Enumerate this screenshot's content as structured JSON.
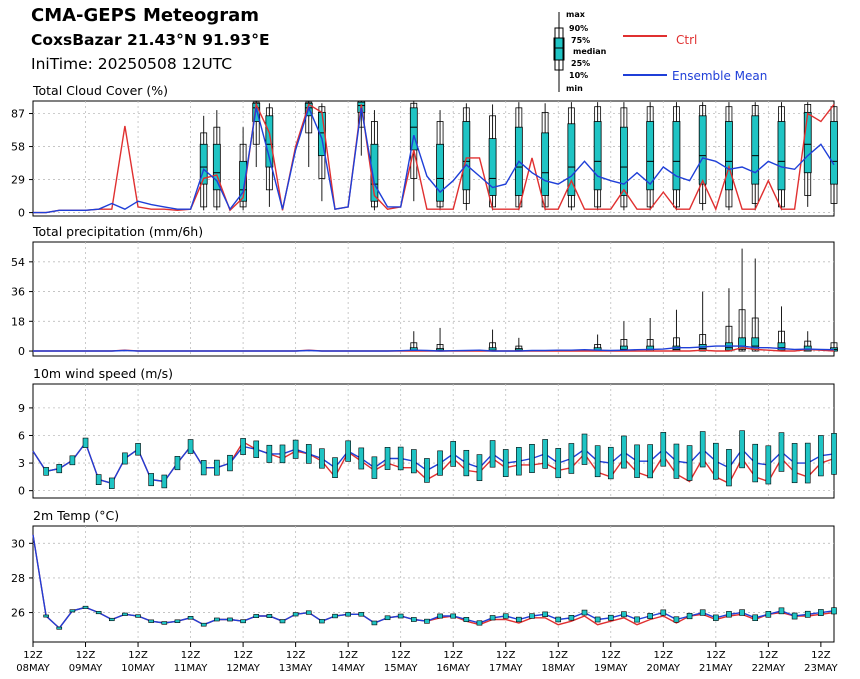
{
  "header": {
    "title": "CMA-GEPS Meteogram",
    "location": "CoxsBazar 21.43°N 91.93°E",
    "init_time": "IniTime: 20250508 12UTC"
  },
  "legend": {
    "box_labels": [
      "max",
      "90%",
      "75%",
      "median",
      "25%",
      "10%",
      "min"
    ],
    "ctrl_label": "Ctrl",
    "mean_label": "Ensemble Mean",
    "colors": {
      "ctrl": "#e03030",
      "mean": "#1f3fd8",
      "box": "#1fc4c4"
    }
  },
  "chart_data": [
    {
      "type": "line",
      "title": "Total Cloud Cover (%)",
      "ylim": [
        -3,
        98
      ],
      "yticks": [
        0,
        29,
        58,
        87
      ],
      "x_step_hours": 6,
      "grid": true,
      "ctrl": [
        0,
        0,
        2,
        2,
        2,
        3,
        3,
        76,
        5,
        3,
        3,
        2,
        3,
        30,
        33,
        2,
        13,
        95,
        70,
        2,
        58,
        95,
        88,
        3,
        5,
        95,
        15,
        3,
        5,
        55,
        3,
        3,
        3,
        48,
        48,
        3,
        3,
        3,
        48,
        3,
        3,
        28,
        3,
        3,
        3,
        20,
        3,
        3,
        18,
        3,
        3,
        28,
        3,
        40,
        3,
        3,
        28,
        3,
        3,
        87,
        80,
        95
      ],
      "mean": [
        0,
        0,
        2,
        2,
        2,
        3,
        8,
        3,
        10,
        7,
        5,
        3,
        3,
        38,
        28,
        3,
        18,
        92,
        48,
        3,
        55,
        92,
        65,
        3,
        5,
        92,
        25,
        5,
        5,
        68,
        32,
        18,
        28,
        42,
        32,
        22,
        25,
        45,
        35,
        28,
        25,
        32,
        45,
        32,
        28,
        25,
        35,
        25,
        40,
        32,
        28,
        48,
        45,
        38,
        40,
        35,
        45,
        40,
        38,
        50,
        60,
        42
      ],
      "boxes": [
        {
          "i": 13,
          "min": 2,
          "p10": 5,
          "p25": 25,
          "med": 40,
          "p75": 60,
          "p90": 70,
          "max": 85
        },
        {
          "i": 14,
          "min": 2,
          "p10": 5,
          "p25": 20,
          "med": 35,
          "p75": 60,
          "p90": 75,
          "max": 90
        },
        {
          "i": 16,
          "min": 2,
          "p10": 5,
          "p25": 10,
          "med": 20,
          "p75": 45,
          "p90": 60,
          "max": 75
        },
        {
          "i": 17,
          "min": 40,
          "p10": 60,
          "p25": 80,
          "med": 92,
          "p75": 96,
          "p90": 97,
          "max": 98
        },
        {
          "i": 18,
          "min": 5,
          "p10": 20,
          "p25": 40,
          "med": 60,
          "p75": 85,
          "p90": 92,
          "max": 96
        },
        {
          "i": 21,
          "min": 40,
          "p10": 70,
          "p25": 85,
          "med": 92,
          "p75": 96,
          "p90": 97,
          "max": 98
        },
        {
          "i": 22,
          "min": 10,
          "p10": 30,
          "p25": 50,
          "med": 70,
          "p75": 88,
          "p90": 93,
          "max": 96
        },
        {
          "i": 25,
          "min": 50,
          "p10": 75,
          "p25": 88,
          "med": 94,
          "p75": 97,
          "p90": 98,
          "max": 98
        },
        {
          "i": 26,
          "min": 2,
          "p10": 5,
          "p25": 10,
          "med": 25,
          "p75": 60,
          "p90": 80,
          "max": 90
        },
        {
          "i": 29,
          "min": 10,
          "p10": 30,
          "p25": 55,
          "med": 75,
          "p75": 92,
          "p90": 96,
          "max": 98
        },
        {
          "i": 31,
          "min": 2,
          "p10": 5,
          "p25": 10,
          "med": 30,
          "p75": 60,
          "p90": 80,
          "max": 90
        },
        {
          "i": 33,
          "min": 2,
          "p10": 8,
          "p25": 20,
          "med": 45,
          "p75": 80,
          "p90": 92,
          "max": 96
        },
        {
          "i": 35,
          "min": 2,
          "p10": 5,
          "p25": 15,
          "med": 30,
          "p75": 65,
          "p90": 85,
          "max": 95
        },
        {
          "i": 37,
          "min": 2,
          "p10": 5,
          "p25": 15,
          "med": 40,
          "p75": 75,
          "p90": 92,
          "max": 97
        },
        {
          "i": 39,
          "min": 2,
          "p10": 5,
          "p25": 15,
          "med": 35,
          "p75": 70,
          "p90": 88,
          "max": 96
        },
        {
          "i": 41,
          "min": 2,
          "p10": 5,
          "p25": 15,
          "med": 40,
          "p75": 78,
          "p90": 92,
          "max": 97
        },
        {
          "i": 43,
          "min": 2,
          "p10": 5,
          "p25": 20,
          "med": 45,
          "p75": 80,
          "p90": 93,
          "max": 97
        },
        {
          "i": 45,
          "min": 2,
          "p10": 5,
          "p25": 15,
          "med": 40,
          "p75": 75,
          "p90": 92,
          "max": 97
        },
        {
          "i": 47,
          "min": 2,
          "p10": 5,
          "p25": 20,
          "med": 45,
          "p75": 80,
          "p90": 93,
          "max": 97
        },
        {
          "i": 49,
          "min": 2,
          "p10": 5,
          "p25": 20,
          "med": 45,
          "p75": 80,
          "p90": 93,
          "max": 97
        },
        {
          "i": 51,
          "min": 2,
          "p10": 8,
          "p25": 25,
          "med": 50,
          "p75": 85,
          "p90": 94,
          "max": 97
        },
        {
          "i": 53,
          "min": 2,
          "p10": 5,
          "p25": 20,
          "med": 45,
          "p75": 80,
          "p90": 93,
          "max": 97
        },
        {
          "i": 55,
          "min": 2,
          "p10": 8,
          "p25": 25,
          "med": 50,
          "p75": 85,
          "p90": 94,
          "max": 97
        },
        {
          "i": 57,
          "min": 2,
          "p10": 5,
          "p25": 20,
          "med": 45,
          "p75": 80,
          "p90": 93,
          "max": 97
        },
        {
          "i": 59,
          "min": 5,
          "p10": 15,
          "p25": 35,
          "med": 60,
          "p75": 88,
          "p90": 95,
          "max": 97
        },
        {
          "i": 61,
          "min": 2,
          "p10": 8,
          "p25": 25,
          "med": 45,
          "p75": 80,
          "p90": 93,
          "max": 97
        }
      ]
    },
    {
      "type": "line",
      "title": "Total precipitation (mm/6h)",
      "ylim": [
        -3,
        66
      ],
      "yticks": [
        0,
        18,
        36,
        54
      ],
      "x_step_hours": 6,
      "grid": true,
      "ctrl": [
        0,
        0,
        0,
        0,
        0,
        0,
        0,
        0.5,
        0,
        0,
        0,
        0,
        0,
        0,
        0,
        0,
        0,
        0,
        0,
        0,
        0,
        0.5,
        0,
        0,
        0,
        0,
        0,
        0,
        0,
        0,
        0,
        0,
        0,
        0,
        0,
        0,
        0,
        0,
        0,
        0,
        0,
        0,
        0,
        0,
        0,
        0,
        0,
        0,
        0,
        0,
        0,
        0.5,
        0,
        0,
        2,
        1,
        0.5,
        0,
        0,
        1,
        0.5,
        0
      ],
      "mean": [
        0,
        0,
        0,
        0,
        0,
        0,
        0,
        0.3,
        0,
        0,
        0,
        0,
        0,
        0,
        0,
        0,
        0,
        0,
        0,
        0,
        0,
        0.3,
        0,
        0,
        0,
        0,
        0,
        0,
        0.2,
        0.5,
        0.3,
        0,
        0.2,
        0.3,
        0.5,
        0,
        0,
        0,
        0.3,
        0.3,
        0.5,
        0.5,
        0.8,
        0.5,
        0.3,
        0.5,
        0.8,
        1,
        1.2,
        2,
        2,
        2.5,
        3,
        3,
        3,
        2,
        2,
        1.5,
        1,
        1.2,
        1,
        0.8
      ],
      "boxes": [
        {
          "i": 29,
          "min": 0,
          "p10": 0,
          "p25": 0,
          "med": 0.5,
          "p75": 2,
          "p90": 5,
          "max": 12
        },
        {
          "i": 31,
          "min": 0,
          "p10": 0,
          "p25": 0,
          "med": 0.5,
          "p75": 1.5,
          "p90": 4,
          "max": 14
        },
        {
          "i": 35,
          "min": 0,
          "p10": 0,
          "p25": 0,
          "med": 0.5,
          "p75": 2,
          "p90": 5,
          "max": 13
        },
        {
          "i": 37,
          "min": 0,
          "p10": 0,
          "p25": 0,
          "med": 0.5,
          "p75": 1.5,
          "p90": 3,
          "max": 8
        },
        {
          "i": 43,
          "min": 0,
          "p10": 0,
          "p25": 0,
          "med": 0.5,
          "p75": 2,
          "p90": 4,
          "max": 10
        },
        {
          "i": 45,
          "min": 0,
          "p10": 0,
          "p25": 0,
          "med": 1,
          "p75": 3,
          "p90": 7,
          "max": 18
        },
        {
          "i": 47,
          "min": 0,
          "p10": 0,
          "p25": 0,
          "med": 1,
          "p75": 3,
          "p90": 7,
          "max": 20
        },
        {
          "i": 49,
          "min": 0,
          "p10": 0,
          "p25": 0,
          "med": 1,
          "p75": 3,
          "p90": 8,
          "max": 25
        },
        {
          "i": 51,
          "min": 0,
          "p10": 0,
          "p25": 0.5,
          "med": 1.5,
          "p75": 4,
          "p90": 10,
          "max": 36
        },
        {
          "i": 53,
          "min": 0,
          "p10": 0,
          "p25": 0.5,
          "med": 2,
          "p75": 5,
          "p90": 15,
          "max": 38
        },
        {
          "i": 54,
          "min": 0,
          "p10": 0,
          "p25": 1,
          "med": 3,
          "p75": 8,
          "p90": 25,
          "max": 62
        },
        {
          "i": 55,
          "min": 0,
          "p10": 0,
          "p25": 1,
          "med": 3,
          "p75": 8,
          "p90": 20,
          "max": 56
        },
        {
          "i": 57,
          "min": 0,
          "p10": 0,
          "p25": 0.5,
          "med": 2,
          "p75": 5,
          "p90": 12,
          "max": 27
        },
        {
          "i": 59,
          "min": 0,
          "p10": 0,
          "p25": 0,
          "med": 1,
          "p75": 3,
          "p90": 6,
          "max": 12
        },
        {
          "i": 61,
          "min": 0,
          "p10": 0,
          "p25": 0,
          "med": 1,
          "p75": 2,
          "p90": 5,
          "max": 9
        }
      ]
    },
    {
      "type": "line",
      "title": "10m wind speed (m/s)",
      "ylim": [
        -0.8,
        11.6
      ],
      "yticks": [
        0,
        3,
        6,
        9
      ],
      "x_step_hours": 6,
      "grid": true,
      "ctrl": [
        4.3,
        2.1,
        2.4,
        3.3,
        5.2,
        1.2,
        0.8,
        3.5,
        4.5,
        1.2,
        1,
        3,
        4.8,
        2.5,
        2.5,
        3,
        5.3,
        4.5,
        4,
        3.5,
        4.3,
        4,
        3.2,
        1.5,
        4.2,
        3.2,
        2.2,
        3,
        2.5,
        2.5,
        1.2,
        2,
        3.5,
        2.2,
        2,
        3.5,
        2.5,
        2.8,
        2.8,
        3,
        2.2,
        2.5,
        4,
        2,
        1.5,
        3.5,
        2,
        1.5,
        3.8,
        1.8,
        1,
        3.5,
        1.5,
        0.8,
        3.5,
        1.5,
        1,
        3.5,
        2,
        1.5,
        3,
        3.5
      ],
      "mean": [
        4.3,
        2.1,
        2.4,
        3.3,
        5.2,
        1.2,
        0.8,
        3.5,
        4.5,
        1.2,
        1,
        3,
        4.8,
        2.5,
        2.5,
        3,
        4.8,
        4.5,
        4,
        4,
        4.5,
        4,
        3.5,
        2.5,
        4.3,
        3.5,
        2.5,
        3.5,
        3.5,
        3.2,
        2.2,
        3,
        4,
        3,
        2.5,
        4,
        3,
        3.2,
        3.5,
        4,
        3,
        3.5,
        4.5,
        3.2,
        3,
        4.2,
        3.2,
        3.2,
        4.5,
        3.2,
        3,
        4.5,
        3.2,
        2.5,
        4.5,
        3,
        2.8,
        4.2,
        3,
        3,
        3.8,
        4
      ]
    },
    {
      "type": "line",
      "title": "2m Temp (°C)",
      "ylim": [
        24.3,
        31
      ],
      "yticks": [
        26,
        28,
        30
      ],
      "x_step_hours": 6,
      "grid": true,
      "ctrl": [
        30.5,
        25.8,
        25.1,
        26.1,
        26.3,
        26,
        25.6,
        25.9,
        25.8,
        25.5,
        25.4,
        25.5,
        25.7,
        25.3,
        25.6,
        25.6,
        25.5,
        25.8,
        25.8,
        25.5,
        25.9,
        26,
        25.5,
        25.8,
        25.9,
        25.9,
        25.4,
        25.7,
        25.8,
        25.6,
        25.5,
        25.7,
        25.8,
        25.5,
        25.3,
        25.6,
        25.6,
        25.4,
        25.7,
        25.7,
        25.3,
        25.5,
        25.8,
        25.3,
        25.5,
        25.7,
        25.3,
        25.6,
        25.8,
        25.4,
        25.8,
        25.9,
        25.6,
        25.8,
        25.9,
        25.6,
        25.9,
        26,
        25.8,
        25.8,
        25.9,
        26
      ],
      "mean": [
        30.5,
        25.8,
        25.1,
        26.1,
        26.3,
        26,
        25.6,
        25.9,
        25.8,
        25.5,
        25.4,
        25.5,
        25.7,
        25.3,
        25.6,
        25.6,
        25.5,
        25.8,
        25.8,
        25.5,
        25.9,
        26,
        25.5,
        25.8,
        25.9,
        25.9,
        25.4,
        25.7,
        25.8,
        25.6,
        25.5,
        25.8,
        25.8,
        25.6,
        25.4,
        25.7,
        25.8,
        25.6,
        25.8,
        25.9,
        25.6,
        25.7,
        26,
        25.6,
        25.7,
        25.9,
        25.6,
        25.8,
        26,
        25.6,
        25.8,
        26,
        25.7,
        25.9,
        26,
        25.7,
        25.9,
        26.1,
        25.8,
        25.9,
        26,
        26.1
      ]
    }
  ],
  "x_axis": {
    "hour_label": "12Z",
    "dates": [
      "08MAY",
      "09MAY",
      "10MAY",
      "11MAY",
      "12MAY",
      "13MAY",
      "14MAY",
      "15MAY",
      "16MAY",
      "17MAY",
      "18MAY",
      "19MAY",
      "20MAY",
      "21MAY",
      "22MAY",
      "23MAY"
    ]
  }
}
